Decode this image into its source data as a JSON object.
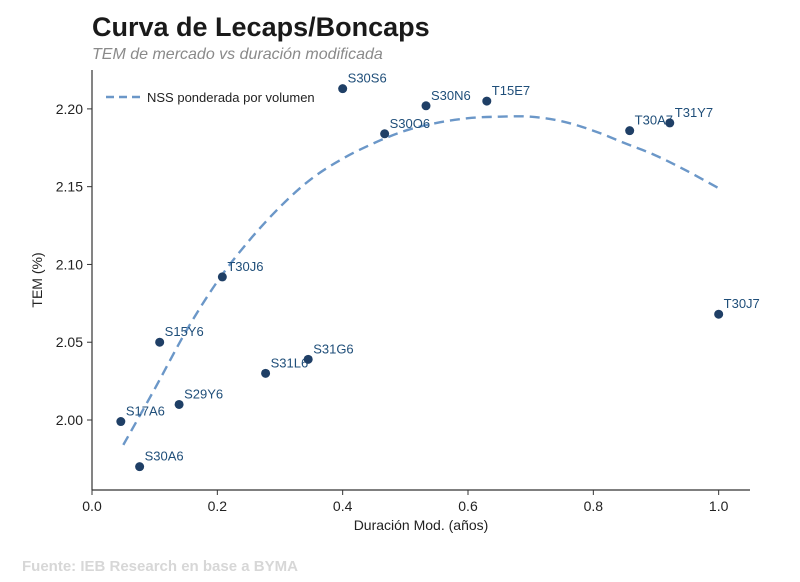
{
  "chart_data": {
    "type": "scatter",
    "title": "Curva de Lecaps/Boncaps",
    "subtitle": "TEM de mercado vs duración modificada",
    "xlabel": "Duración Mod. (años)",
    "ylabel": "TEM (%)",
    "xlim": [
      0.0,
      1.05
    ],
    "ylim": [
      1.955,
      2.225
    ],
    "x_ticks": [
      0.0,
      0.2,
      0.4,
      0.6,
      0.8,
      1.0
    ],
    "y_ticks": [
      2.0,
      2.05,
      2.1,
      2.15,
      2.2
    ],
    "x_tick_labels": [
      "0.0",
      "0.2",
      "0.4",
      "0.6",
      "0.8",
      "1.0"
    ],
    "y_tick_labels": [
      "2.00",
      "2.05",
      "2.10",
      "2.15",
      "2.20"
    ],
    "grid": false,
    "legend_position": "top-left",
    "point_color": "#1f3f66",
    "label_color": "#1f4e79",
    "curve_color": "#6b97c8",
    "series": [
      {
        "name": "",
        "points": [
          {
            "label": "S17A6",
            "x": 0.046,
            "y": 1.999
          },
          {
            "label": "S30A6",
            "x": 0.076,
            "y": 1.97
          },
          {
            "label": "S15Y6",
            "x": 0.108,
            "y": 2.05
          },
          {
            "label": "S29Y6",
            "x": 0.139,
            "y": 2.01
          },
          {
            "label": "T30J6",
            "x": 0.208,
            "y": 2.092
          },
          {
            "label": "S31L6",
            "x": 0.277,
            "y": 2.03
          },
          {
            "label": "S31G6",
            "x": 0.345,
            "y": 2.039
          },
          {
            "label": "S30S6",
            "x": 0.4,
            "y": 2.213
          },
          {
            "label": "S30O6",
            "x": 0.467,
            "y": 2.184
          },
          {
            "label": "S30N6",
            "x": 0.533,
            "y": 2.202
          },
          {
            "label": "T15E7",
            "x": 0.63,
            "y": 2.205
          },
          {
            "label": "T30A7",
            "x": 0.858,
            "y": 2.186
          },
          {
            "label": "T31Y7",
            "x": 0.922,
            "y": 2.191
          },
          {
            "label": "T30J7",
            "x": 1.0,
            "y": 2.068
          }
        ]
      }
    ],
    "curve": {
      "name": "NSS ponderada por volumen",
      "x": [
        0.05,
        0.1,
        0.15,
        0.2,
        0.25,
        0.3,
        0.35,
        0.4,
        0.45,
        0.5,
        0.55,
        0.6,
        0.65,
        0.7,
        0.75,
        0.8,
        0.85,
        0.9,
        0.95,
        1.0
      ],
      "y": [
        1.984,
        2.02,
        2.057,
        2.089,
        2.115,
        2.137,
        2.155,
        2.168,
        2.178,
        2.186,
        2.191,
        2.194,
        2.195,
        2.195,
        2.192,
        2.186,
        2.178,
        2.17,
        2.16,
        2.149
      ]
    }
  },
  "source": "Fuente: IEB Research en base a BYMA"
}
